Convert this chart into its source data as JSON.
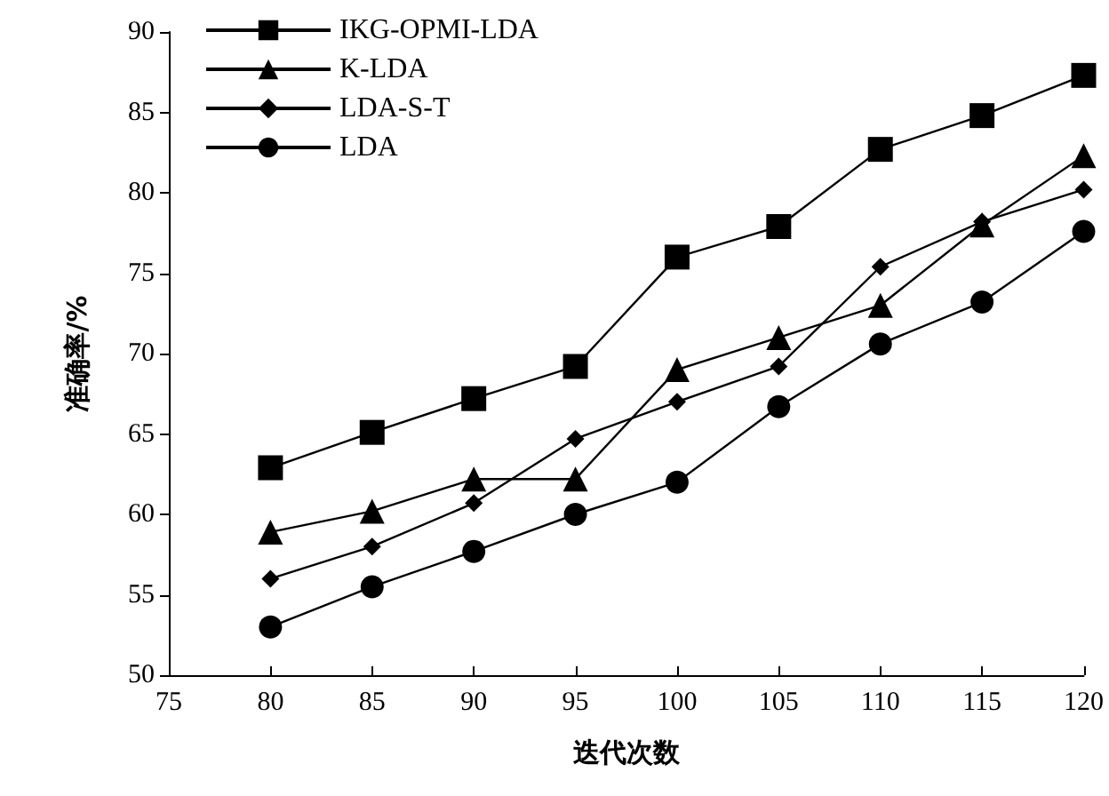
{
  "chart_data": {
    "type": "line",
    "xlabel": "迭代次数",
    "ylabel": "准确率/%",
    "x": [
      80,
      85,
      90,
      95,
      100,
      105,
      110,
      115,
      120
    ],
    "xlim": [
      75,
      120
    ],
    "xticks": [
      75,
      80,
      85,
      90,
      95,
      100,
      105,
      110,
      115,
      120
    ],
    "ylim": [
      50,
      90
    ],
    "yticks": [
      50,
      55,
      60,
      65,
      70,
      75,
      80,
      85,
      90
    ],
    "grid": false,
    "legend": "top left",
    "line_style": "solid",
    "series": [
      {
        "name": "IKG-OPMI-LDA",
        "color": "#000000",
        "marker": "square",
        "values": [
          62.9,
          65.1,
          67.2,
          69.2,
          76.0,
          77.9,
          82.7,
          84.8,
          87.3
        ]
      },
      {
        "name": "K-LDA",
        "color": "#000000",
        "marker": "triangle",
        "values": [
          58.9,
          60.2,
          62.2,
          62.2,
          69.0,
          71.0,
          73.0,
          78.0,
          82.3
        ]
      },
      {
        "name": "LDA-S-T",
        "color": "#000000",
        "marker": "diamond",
        "values": [
          56.0,
          58.0,
          60.7,
          64.7,
          67.0,
          69.2,
          75.4,
          78.2,
          80.2
        ]
      },
      {
        "name": "LDA",
        "color": "#000000",
        "marker": "circle",
        "values": [
          53.0,
          55.5,
          57.7,
          60.0,
          62.0,
          66.7,
          70.6,
          73.2,
          77.6
        ]
      }
    ]
  }
}
